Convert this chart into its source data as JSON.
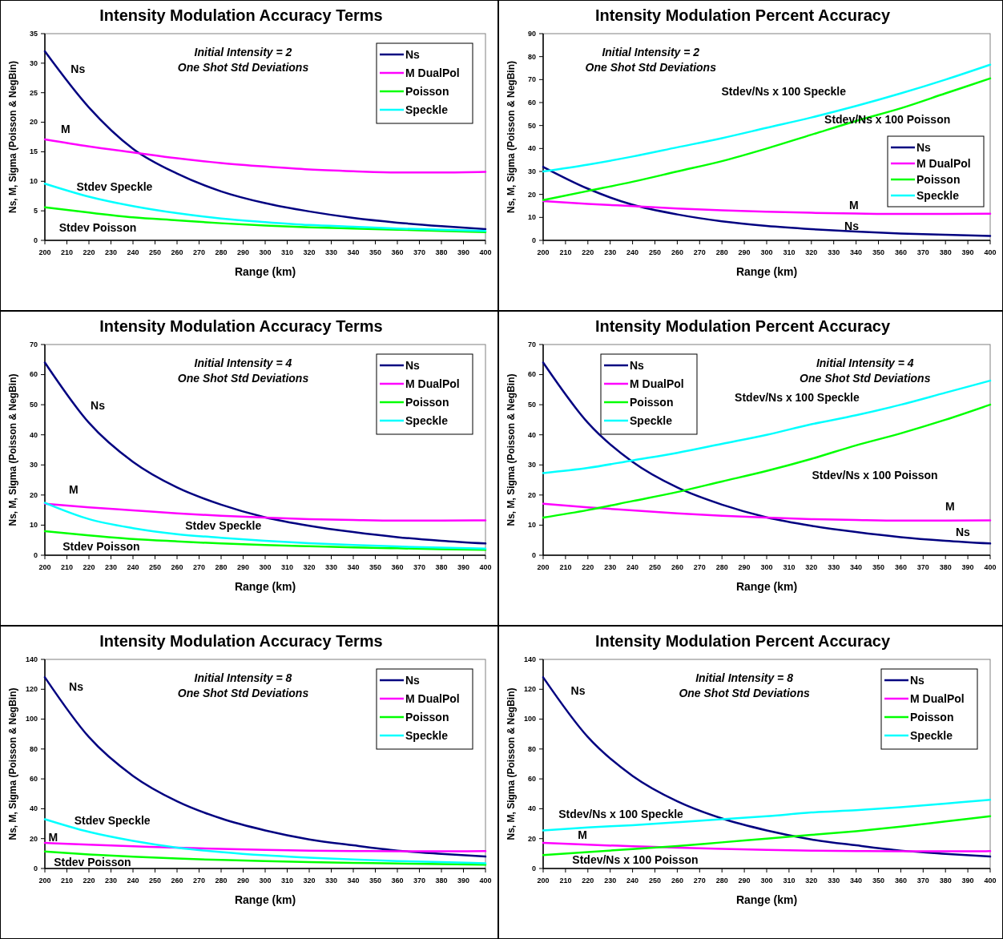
{
  "chart_data": [
    {
      "type": "line",
      "title": "Intensity Modulation Accuracy Terms",
      "subtitle": "Initial Intensity = 2\nOne Shot Std Deviations",
      "xlabel": "Range (km)",
      "ylabel": "Ns, M, Sigma (Poisson & NegBin)",
      "x": [
        200,
        220,
        240,
        260,
        280,
        300,
        320,
        340,
        360,
        380,
        400
      ],
      "xlim": [
        200,
        400
      ],
      "xticks": [
        200,
        210,
        220,
        230,
        240,
        250,
        260,
        270,
        280,
        290,
        300,
        310,
        320,
        330,
        340,
        350,
        360,
        370,
        380,
        390,
        400
      ],
      "ylim": [
        0,
        35
      ],
      "yticks": [
        0,
        5,
        10,
        15,
        20,
        25,
        30,
        35
      ],
      "legend": "top right",
      "grid": false,
      "marker": "none",
      "line_style": "solid",
      "series": [
        {
          "name": "Ns",
          "color": "#000080",
          "values": [
            32,
            22.5,
            15.5,
            11.3,
            8.3,
            6.3,
            4.9,
            3.8,
            3.0,
            2.4,
            1.9
          ]
        },
        {
          "name": "M DualPol",
          "color": "#ff00ff",
          "values": [
            17.1,
            15.9,
            14.9,
            13.9,
            13.1,
            12.5,
            12.0,
            11.7,
            11.5,
            11.5,
            11.6
          ]
        },
        {
          "name": "Poisson",
          "color": "#00ff00",
          "values": [
            5.6,
            4.7,
            3.9,
            3.4,
            2.9,
            2.5,
            2.2,
            2.0,
            1.8,
            1.6,
            1.4
          ]
        },
        {
          "name": "Speckle",
          "color": "#00ffff",
          "values": [
            9.6,
            7.4,
            5.8,
            4.6,
            3.7,
            3.1,
            2.6,
            2.3,
            2.0,
            1.8,
            1.6
          ]
        }
      ],
      "annotations": [
        "Ns",
        "M",
        "Stdev Speckle",
        "Stdev Poisson"
      ]
    },
    {
      "type": "line",
      "title": "Intensity Modulation Percent Accuracy",
      "subtitle": "Initial Intensity = 2\nOne Shot Std Deviations",
      "xlabel": "Range (km)",
      "ylabel": "Ns, M, Sigma (Poisson & NegBin)",
      "x": [
        200,
        220,
        240,
        260,
        280,
        300,
        320,
        340,
        360,
        380,
        400
      ],
      "xlim": [
        200,
        400
      ],
      "xticks": [
        200,
        210,
        220,
        230,
        240,
        250,
        260,
        270,
        280,
        290,
        300,
        310,
        320,
        330,
        340,
        350,
        360,
        370,
        380,
        390,
        400
      ],
      "ylim": [
        0,
        90
      ],
      "yticks": [
        0,
        10,
        20,
        30,
        40,
        50,
        60,
        70,
        80,
        90
      ],
      "legend": "right",
      "grid": false,
      "marker": "none",
      "line_style": "solid",
      "series": [
        {
          "name": "Ns",
          "color": "#000080",
          "values": [
            32,
            22.5,
            15.5,
            11.3,
            8.3,
            6.3,
            4.9,
            3.8,
            3.0,
            2.4,
            1.9
          ]
        },
        {
          "name": "M DualPol",
          "color": "#ff00ff",
          "values": [
            17.1,
            15.9,
            14.9,
            13.9,
            13.1,
            12.5,
            12.0,
            11.7,
            11.5,
            11.5,
            11.6
          ]
        },
        {
          "name": "Poisson",
          "color": "#00ff00",
          "values": [
            17.5,
            21.5,
            25.5,
            30,
            34.5,
            40,
            46,
            52,
            57.5,
            64,
            70.5
          ]
        },
        {
          "name": "Speckle",
          "color": "#00ffff",
          "values": [
            30,
            33,
            36.5,
            40.5,
            44.5,
            49,
            53.5,
            58.5,
            64,
            70,
            76.5
          ]
        }
      ],
      "annotations": [
        "Stdev/Ns x 100  Speckle",
        "Stdev/Ns x 100  Poisson",
        "M",
        "Ns"
      ]
    },
    {
      "type": "line",
      "title": "Intensity Modulation Accuracy Terms",
      "subtitle": "Initial Intensity = 4\nOne Shot Std Deviations",
      "xlabel": "Range (km)",
      "ylabel": "Ns, M, Sigma (Poisson & NegBin)",
      "x": [
        200,
        220,
        240,
        260,
        280,
        300,
        320,
        340,
        360,
        380,
        400
      ],
      "xlim": [
        200,
        400
      ],
      "xticks": [
        200,
        210,
        220,
        230,
        240,
        250,
        260,
        270,
        280,
        290,
        300,
        310,
        320,
        330,
        340,
        350,
        360,
        370,
        380,
        390,
        400
      ],
      "ylim": [
        0,
        70
      ],
      "yticks": [
        0,
        10,
        20,
        30,
        40,
        50,
        60,
        70
      ],
      "legend": "top right",
      "grid": false,
      "marker": "none",
      "line_style": "solid",
      "series": [
        {
          "name": "Ns",
          "color": "#000080",
          "values": [
            64,
            44,
            31,
            22.5,
            16.8,
            12.6,
            9.8,
            7.7,
            6.0,
            4.8,
            3.9
          ]
        },
        {
          "name": "M DualPol",
          "color": "#ff00ff",
          "values": [
            17.1,
            15.9,
            14.9,
            13.9,
            13.1,
            12.5,
            12.0,
            11.7,
            11.5,
            11.5,
            11.6
          ]
        },
        {
          "name": "Poisson",
          "color": "#00ff00",
          "values": [
            8.0,
            6.6,
            5.4,
            4.6,
            3.9,
            3.4,
            3.0,
            2.6,
            2.3,
            2.0,
            1.8
          ]
        },
        {
          "name": "Speckle",
          "color": "#00ffff",
          "values": [
            17.4,
            12,
            9,
            7,
            5.8,
            4.8,
            4,
            3.4,
            2.9,
            2.5,
            2.2
          ]
        }
      ],
      "annotations": [
        "Ns",
        "M",
        "Stdev Speckle",
        "Stdev Poisson"
      ]
    },
    {
      "type": "line",
      "title": "Intensity Modulation Percent Accuracy",
      "subtitle": "Initial Intensity = 4\nOne Shot Std Deviations",
      "xlabel": "Range (km)",
      "ylabel": "Ns, M, Sigma (Poisson & NegBin)",
      "x": [
        200,
        220,
        240,
        260,
        280,
        300,
        320,
        340,
        360,
        380,
        400
      ],
      "xlim": [
        200,
        400
      ],
      "xticks": [
        200,
        210,
        220,
        230,
        240,
        250,
        260,
        270,
        280,
        290,
        300,
        310,
        320,
        330,
        340,
        350,
        360,
        370,
        380,
        390,
        400
      ],
      "ylim": [
        0,
        70
      ],
      "yticks": [
        0,
        10,
        20,
        30,
        40,
        50,
        60,
        70
      ],
      "legend": "top left",
      "grid": false,
      "marker": "none",
      "line_style": "solid",
      "series": [
        {
          "name": "Ns",
          "color": "#000080",
          "values": [
            64,
            44,
            31,
            22.5,
            16.8,
            12.6,
            9.8,
            7.7,
            6.0,
            4.8,
            3.9
          ]
        },
        {
          "name": "M DualPol",
          "color": "#ff00ff",
          "values": [
            17.1,
            15.9,
            14.9,
            13.9,
            13.1,
            12.5,
            12.0,
            11.7,
            11.5,
            11.5,
            11.6
          ]
        },
        {
          "name": "Poisson",
          "color": "#00ff00",
          "values": [
            12.5,
            15,
            18,
            21,
            24.5,
            28,
            32,
            36.5,
            40.5,
            45,
            50
          ]
        },
        {
          "name": "Speckle",
          "color": "#00ffff",
          "values": [
            27.3,
            29,
            31.5,
            34,
            37,
            40,
            43.5,
            46.5,
            50,
            54,
            58
          ]
        }
      ],
      "annotations": [
        "Stdev/Ns x 100  Speckle",
        "Stdev/Ns x 100  Poisson",
        "M",
        "Ns"
      ]
    },
    {
      "type": "line",
      "title": "Intensity Modulation Accuracy Terms",
      "subtitle": "Initial Intensity = 8\nOne Shot Std Deviations",
      "xlabel": "Range (km)",
      "ylabel": "Ns, M, Sigma (Poisson & NegBin)",
      "x": [
        200,
        220,
        240,
        260,
        280,
        300,
        320,
        340,
        360,
        380,
        400
      ],
      "xlim": [
        200,
        400
      ],
      "xticks": [
        200,
        210,
        220,
        230,
        240,
        250,
        260,
        270,
        280,
        290,
        300,
        310,
        320,
        330,
        340,
        350,
        360,
        370,
        380,
        390,
        400
      ],
      "ylim": [
        0,
        140
      ],
      "yticks": [
        0,
        20,
        40,
        60,
        80,
        100,
        120,
        140
      ],
      "legend": "top right",
      "grid": false,
      "marker": "none",
      "line_style": "solid",
      "series": [
        {
          "name": "Ns",
          "color": "#000080",
          "values": [
            128,
            88,
            62,
            45,
            33.5,
            25.5,
            19.5,
            15.5,
            12,
            9.8,
            8
          ]
        },
        {
          "name": "M DualPol",
          "color": "#ff00ff",
          "values": [
            17.1,
            15.9,
            14.9,
            13.9,
            13.1,
            12.5,
            12.0,
            11.7,
            11.5,
            11.5,
            11.6
          ]
        },
        {
          "name": "Poisson",
          "color": "#00ff00",
          "values": [
            11.4,
            9.4,
            7.9,
            6.7,
            5.7,
            4.9,
            4.3,
            3.8,
            3.3,
            2.9,
            2.6
          ]
        },
        {
          "name": "Speckle",
          "color": "#00ffff",
          "values": [
            33,
            24.5,
            18.5,
            14,
            11,
            8.8,
            7.3,
            6,
            5,
            4.3,
            3.5
          ]
        }
      ],
      "annotations": [
        "Ns",
        "Stdev Speckle",
        "M",
        "Stdev Poisson"
      ]
    },
    {
      "type": "line",
      "title": "Intensity Modulation Percent Accuracy",
      "subtitle": "Initial Intensity = 8\nOne Shot Std Deviations",
      "xlabel": "Range (km)",
      "ylabel": "Ns, M, Sigma (Poisson & NegBin)",
      "x": [
        200,
        220,
        240,
        260,
        280,
        300,
        320,
        340,
        360,
        380,
        400
      ],
      "xlim": [
        200,
        400
      ],
      "xticks": [
        200,
        210,
        220,
        230,
        240,
        250,
        260,
        270,
        280,
        290,
        300,
        310,
        320,
        330,
        340,
        350,
        360,
        370,
        380,
        390,
        400
      ],
      "ylim": [
        0,
        140
      ],
      "yticks": [
        0,
        20,
        40,
        60,
        80,
        100,
        120,
        140
      ],
      "legend": "top right",
      "grid": false,
      "marker": "none",
      "line_style": "solid",
      "series": [
        {
          "name": "Ns",
          "color": "#000080",
          "values": [
            128,
            88,
            62,
            45,
            33.5,
            25.5,
            19.5,
            15.5,
            12,
            9.8,
            8
          ]
        },
        {
          "name": "M DualPol",
          "color": "#ff00ff",
          "values": [
            17.1,
            15.9,
            14.9,
            13.9,
            13.1,
            12.5,
            12.0,
            11.7,
            11.5,
            11.5,
            11.6
          ]
        },
        {
          "name": "Poisson",
          "color": "#00ff00",
          "values": [
            9,
            11,
            13,
            15,
            17.5,
            20,
            22.5,
            25,
            28,
            31.5,
            35
          ]
        },
        {
          "name": "Speckle",
          "color": "#00ffff",
          "values": [
            25.5,
            27.5,
            29,
            31,
            33,
            35,
            37.5,
            39,
            41,
            43.5,
            46
          ]
        }
      ],
      "annotations": [
        "Ns",
        "Stdev/Ns x 100 Speckle",
        "M",
        "Stdev/Ns x 100 Poisson"
      ]
    }
  ]
}
